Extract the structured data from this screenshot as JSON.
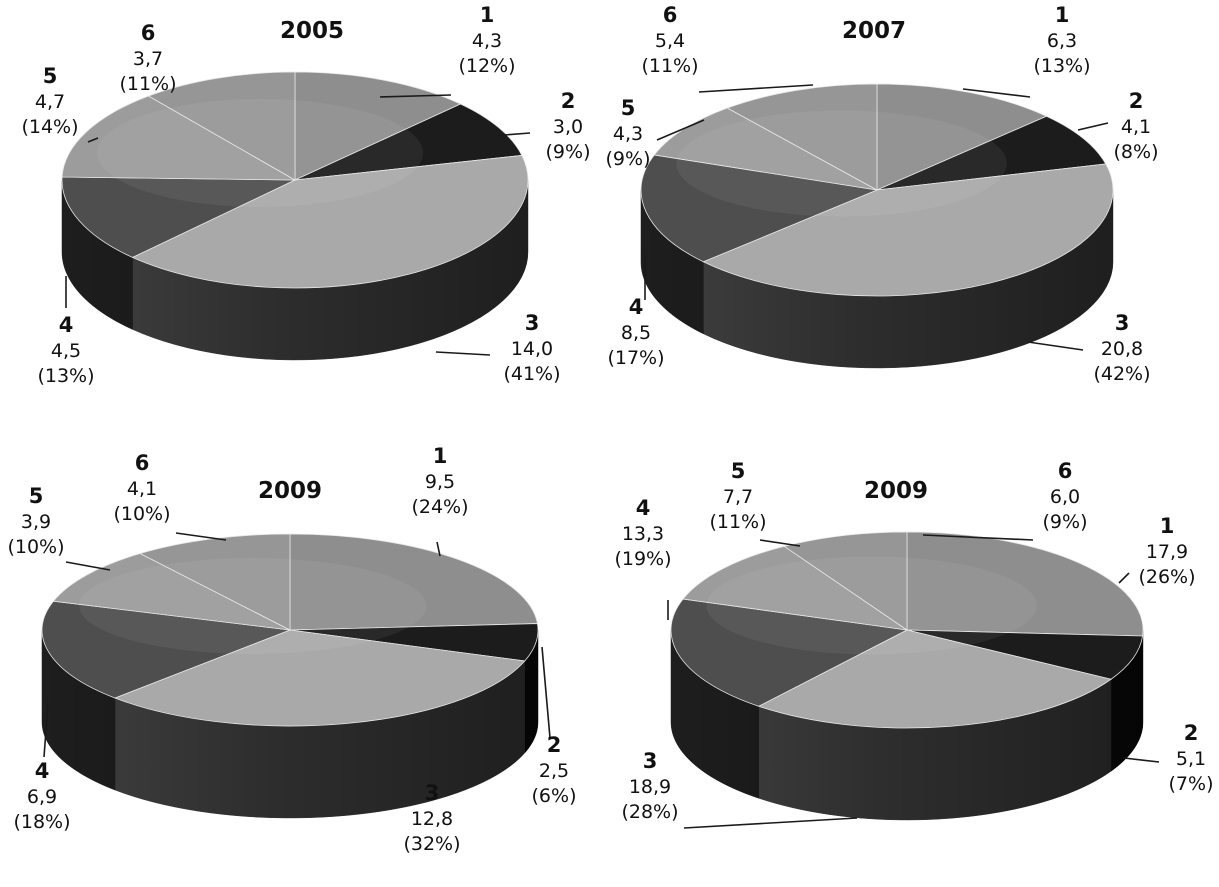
{
  "chart_data": [
    {
      "type": "pie",
      "title": "2005",
      "categories": [
        "1",
        "2",
        "3",
        "4",
        "5",
        "6"
      ],
      "values": [
        4.3,
        3.0,
        14.0,
        4.5,
        4.7,
        3.7
      ],
      "value_labels": [
        "4,3",
        "3,0",
        "14,0",
        "4,5",
        "4,7",
        "3,7"
      ],
      "percent_labels": [
        "(12%)",
        "(9%)",
        "(41%)",
        "(13%)",
        "(14%)",
        "(11%)"
      ],
      "legend": "none",
      "style": "3d"
    },
    {
      "type": "pie",
      "title": "2007",
      "categories": [
        "1",
        "2",
        "3",
        "4",
        "5",
        "6"
      ],
      "values": [
        6.3,
        4.1,
        20.8,
        8.5,
        4.3,
        5.4
      ],
      "value_labels": [
        "6,3",
        "4,1",
        "20,8",
        "8,5",
        "4,3",
        "5,4"
      ],
      "percent_labels": [
        "(13%)",
        "(8%)",
        "(42%)",
        "(17%)",
        "(9%)",
        "(11%)"
      ],
      "legend": "none",
      "style": "3d"
    },
    {
      "type": "pie",
      "title": "2009",
      "categories": [
        "1",
        "2",
        "3",
        "4",
        "5",
        "6"
      ],
      "values": [
        9.5,
        2.5,
        12.8,
        6.9,
        3.9,
        4.1
      ],
      "value_labels": [
        "9,5",
        "2,5",
        "12,8",
        "6,9",
        "3,9",
        "4,1"
      ],
      "percent_labels": [
        "(24%)",
        "(6%)",
        "(32%)",
        "(18%)",
        "(10%)",
        "(10%)"
      ],
      "legend": "none",
      "style": "3d"
    },
    {
      "type": "pie",
      "title": "2009",
      "categories": [
        "1",
        "2",
        "3",
        "4",
        "5",
        "6"
      ],
      "values": [
        17.9,
        5.1,
        18.9,
        13.3,
        7.7,
        6.0
      ],
      "value_labels": [
        "17,9",
        "5,1",
        "18,9",
        "13,3",
        "7,7",
        "6,0"
      ],
      "percent_labels": [
        "(26%)",
        "(7%)",
        "(28%)",
        "(19%)",
        "(11%)",
        "(9%)"
      ],
      "legend": "none",
      "style": "3d"
    }
  ],
  "colors": {
    "slice_tops": [
      "#8e8e8e",
      "#1c1c1c",
      "#a9a9a9",
      "#4e4e4e",
      "#9c9c9c",
      "#969696"
    ],
    "background": "#ffffff"
  }
}
